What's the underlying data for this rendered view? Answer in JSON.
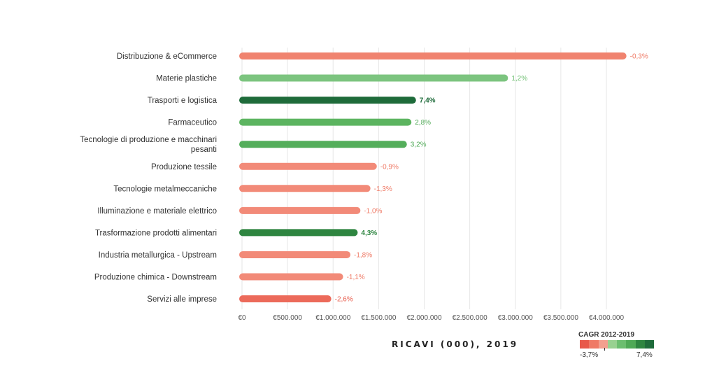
{
  "chart_data": {
    "type": "bar",
    "orientation": "horizontal",
    "title": "",
    "xlabel": "RICAVI (000), 2019",
    "ylabel": "",
    "xlim": [
      0,
      4400000
    ],
    "xticks": [
      0,
      500000,
      1000000,
      1500000,
      2000000,
      2500000,
      3000000,
      3500000,
      4000000
    ],
    "xtick_labels": [
      "€0",
      "€500.000",
      "€1.000.000",
      "€1.500.000",
      "€2.000.000",
      "€2.500.000",
      "€3.000.000",
      "€3.500.000",
      "€4.000.000"
    ],
    "categories": [
      "Distribuzione & eCommerce",
      "Materie plastiche",
      "Trasporti e logistica",
      "Farmaceutico",
      "Tecnologie di produzione e macchinari pesanti",
      "Produzione tessile",
      "Tecnologie metalmeccaniche",
      "Illuminazione e materiale elettrico",
      "Trasformazione prodotti alimentari",
      "Industria metallurgica - Upstream",
      "Produzione chimica - Downstream",
      "Servizi alle imprese"
    ],
    "category_lines": [
      [
        "Distribuzione & eCommerce"
      ],
      [
        "Materie plastiche"
      ],
      [
        "Trasporti e logistica"
      ],
      [
        "Farmaceutico"
      ],
      [
        "Tecnologie di produzione e macchinari",
        "pesanti"
      ],
      [
        "Produzione tessile"
      ],
      [
        "Tecnologie metalmeccaniche"
      ],
      [
        "Illuminazione e materiale elettrico"
      ],
      [
        "Trasformazione prodotti alimentari"
      ],
      [
        "Industria metallurgica - Upstream"
      ],
      [
        "Produzione chimica - Downstream"
      ],
      [
        "Servizi alle imprese"
      ]
    ],
    "values": [
      4220000,
      2920000,
      1910000,
      1860000,
      1810000,
      1480000,
      1410000,
      1300000,
      1270000,
      1190000,
      1110000,
      980000
    ],
    "cagr_values": [
      -0.3,
      1.2,
      7.4,
      2.8,
      3.2,
      -0.9,
      -1.3,
      -1.0,
      4.3,
      -1.8,
      -1.1,
      -2.6
    ],
    "cagr_labels": [
      "-0,3%",
      "1,2%",
      "7,4%",
      "2,8%",
      "3,2%",
      "-0,9%",
      "-1,3%",
      "-1,0%",
      "4,3%",
      "-1,8%",
      "-1,1%",
      "-2,6%"
    ],
    "bar_colors": [
      "#f0836f",
      "#7cc47f",
      "#1e6b3a",
      "#5cb460",
      "#54ae5b",
      "#f28a78",
      "#f28a78",
      "#f28a78",
      "#2e8540",
      "#f28a78",
      "#f28a78",
      "#ec6a5a"
    ],
    "label_colors": [
      "#ef7a66",
      "#6cbe6f",
      "#1e6b3a",
      "#4fa956",
      "#4fa956",
      "#ef7a66",
      "#ef7a66",
      "#ef7a66",
      "#2e8540",
      "#ef7a66",
      "#ef7a66",
      "#e85c4c"
    ],
    "legend": {
      "title": "CAGR 2012-2019",
      "min_label": "-3,7%",
      "max_label": "7,4%",
      "colors": [
        "#e8594a",
        "#ef7a66",
        "#f3a08f",
        "#98d190",
        "#6cbe6f",
        "#4fa956",
        "#2e8540",
        "#1e6b3a"
      ],
      "position": "bottom-right"
    },
    "grid": true
  }
}
